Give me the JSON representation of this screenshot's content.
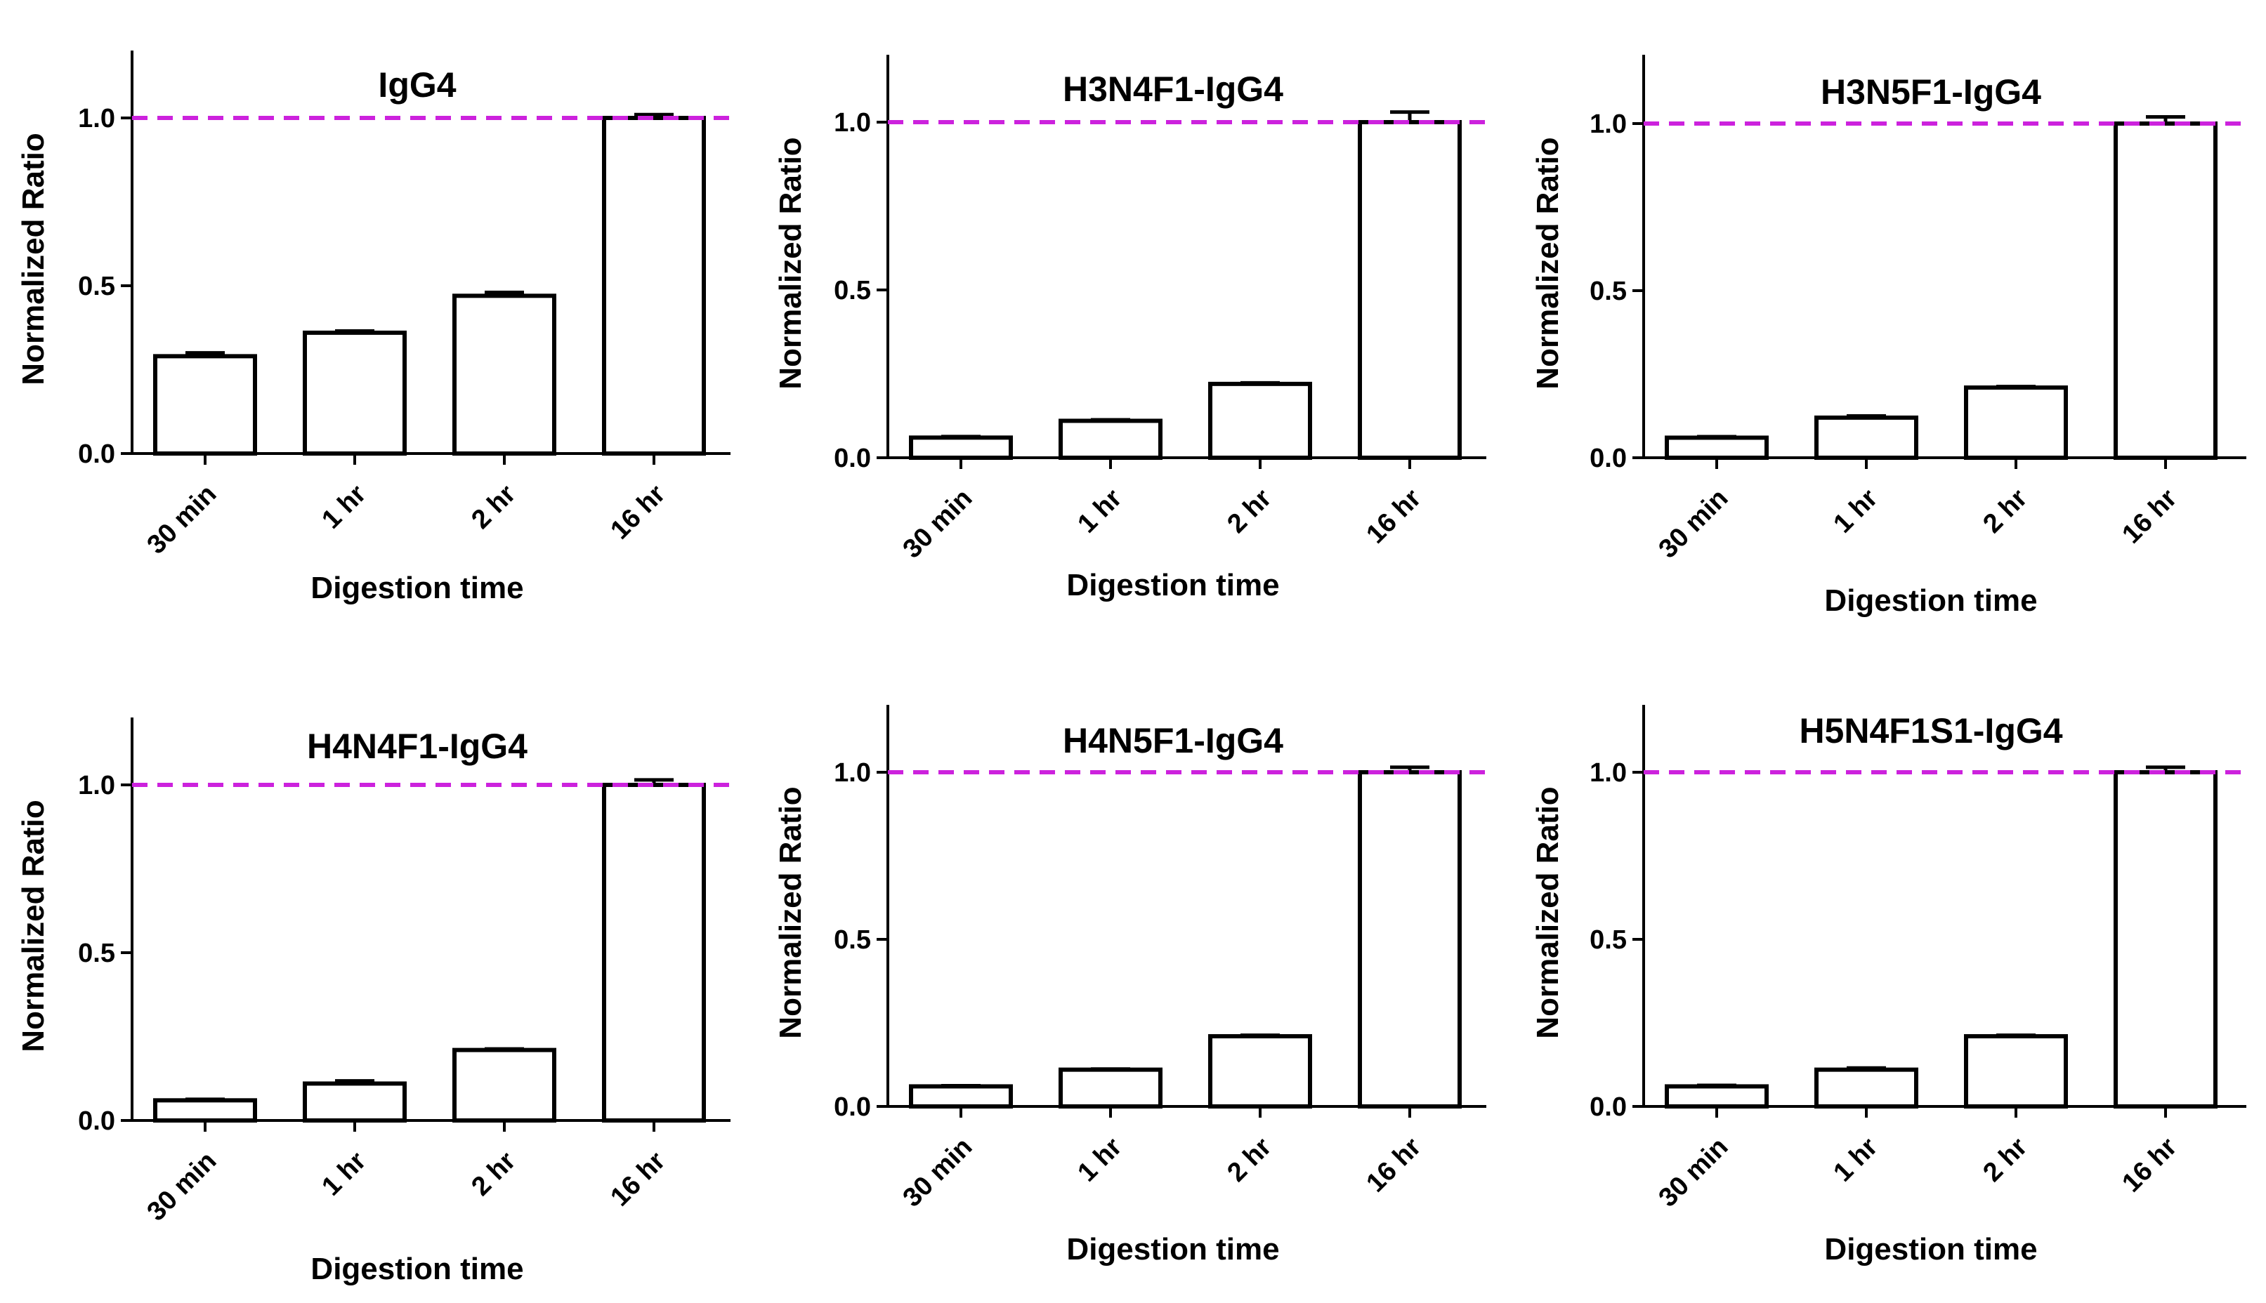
{
  "figure": {
    "reference_color": "#cc22dd",
    "bar_fill": "#ffffff",
    "stroke_color": "#000000"
  },
  "chart_data": [
    {
      "type": "bar",
      "title": "IgG4",
      "xlabel": "Digestion time",
      "ylabel": "Normalized Ratio",
      "categories": [
        "30 min",
        "1 hr",
        "2 hr",
        "16 hr"
      ],
      "values": [
        0.29,
        0.36,
        0.47,
        1.0
      ],
      "errors": [
        0.01,
        0.005,
        0.01,
        0.01
      ],
      "ylim": [
        0,
        1.2
      ],
      "yticks": [
        0.0,
        0.5,
        1.0
      ],
      "ytick_labels": [
        "0.0",
        "0.5",
        "1.0"
      ],
      "reference_line": 1.0
    },
    {
      "type": "bar",
      "title": "H3N4F1-IgG4",
      "xlabel": "Digestion time",
      "ylabel": "Normalized Ratio",
      "categories": [
        "30 min",
        "1 hr",
        "2 hr",
        "16 hr"
      ],
      "values": [
        0.06,
        0.11,
        0.22,
        1.0
      ],
      "errors": [
        0.003,
        0.003,
        0.003,
        0.03
      ],
      "ylim": [
        0,
        1.2
      ],
      "yticks": [
        0.0,
        0.5,
        1.0
      ],
      "ytick_labels": [
        "0.0",
        "0.5",
        "1.0"
      ],
      "reference_line": 1.0
    },
    {
      "type": "bar",
      "title": "H3N5F1-IgG4",
      "xlabel": "Digestion time",
      "ylabel": "Normalized Ratio",
      "categories": [
        "30 min",
        "1 hr",
        "2 hr",
        "16 hr"
      ],
      "values": [
        0.06,
        0.12,
        0.21,
        1.0
      ],
      "errors": [
        0.003,
        0.005,
        0.003,
        0.02
      ],
      "ylim": [
        0,
        1.2
      ],
      "yticks": [
        0.0,
        0.5,
        1.0
      ],
      "ytick_labels": [
        "0.0",
        "0.5",
        "1.0"
      ],
      "reference_line": 1.0
    },
    {
      "type": "bar",
      "title": "H4N4F1-IgG4",
      "xlabel": "Digestion time",
      "ylabel": "Normalized Ratio",
      "categories": [
        "30 min",
        "1 hr",
        "2 hr",
        "16 hr"
      ],
      "values": [
        0.06,
        0.11,
        0.21,
        1.0
      ],
      "errors": [
        0.003,
        0.008,
        0.003,
        0.015
      ],
      "ylim": [
        0,
        1.2
      ],
      "yticks": [
        0.0,
        0.5,
        1.0
      ],
      "ytick_labels": [
        "0.0",
        "0.5",
        "1.0"
      ],
      "reference_line": 1.0
    },
    {
      "type": "bar",
      "title": "H4N5F1-IgG4",
      "xlabel": "Digestion time",
      "ylabel": "Normalized Ratio",
      "categories": [
        "30 min",
        "1 hr",
        "2 hr",
        "16 hr"
      ],
      "values": [
        0.06,
        0.11,
        0.21,
        1.0
      ],
      "errors": [
        0.002,
        0.002,
        0.003,
        0.015
      ],
      "ylim": [
        0,
        1.2
      ],
      "yticks": [
        0.0,
        0.5,
        1.0
      ],
      "ytick_labels": [
        "0.0",
        "0.5",
        "1.0"
      ],
      "reference_line": 1.0
    },
    {
      "type": "bar",
      "title": "H5N4F1S1-IgG4",
      "xlabel": "Digestion time",
      "ylabel": "Normalized Ratio",
      "categories": [
        "30 min",
        "1 hr",
        "2 hr",
        "16 hr"
      ],
      "values": [
        0.06,
        0.11,
        0.21,
        1.0
      ],
      "errors": [
        0.003,
        0.005,
        0.003,
        0.015
      ],
      "ylim": [
        0,
        1.2
      ],
      "yticks": [
        0.0,
        0.5,
        1.0
      ],
      "ytick_labels": [
        "0.0",
        "0.5",
        "1.0"
      ],
      "reference_line": 1.0
    }
  ]
}
